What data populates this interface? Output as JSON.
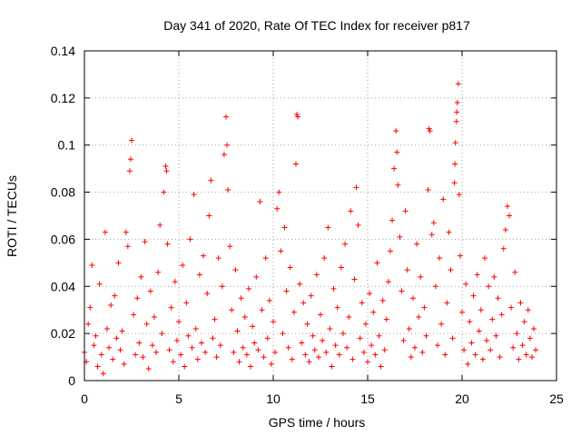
{
  "chart_data": {
    "type": "scatter",
    "title": "Day 341 of 2020, Rate Of TEC Index for receiver p817",
    "xlabel": "GPS time / hours",
    "ylabel": "ROTI / TECUs",
    "xlim": [
      0,
      25
    ],
    "ylim": [
      0,
      0.14
    ],
    "xticks": [
      0,
      5,
      10,
      15,
      20,
      25
    ],
    "yticks": [
      0,
      0.02,
      0.04,
      0.06,
      0.08,
      0.1,
      0.12,
      0.14
    ],
    "xtick_labels": [
      "0",
      "5",
      "10",
      "15",
      "20",
      "25"
    ],
    "ytick_labels": [
      "0",
      "0.02",
      "0.04",
      "0.06",
      "0.08",
      "0.1",
      "0.12",
      "0.14"
    ],
    "grid": true,
    "marker": "+",
    "color": "#ff0000",
    "series": [
      {
        "name": "p817",
        "points": [
          [
            0.0,
            0.012
          ],
          [
            0.1,
            0.008
          ],
          [
            0.2,
            0.024
          ],
          [
            0.3,
            0.031
          ],
          [
            0.4,
            0.049
          ],
          [
            0.5,
            0.015
          ],
          [
            0.6,
            0.019
          ],
          [
            0.7,
            0.006
          ],
          [
            0.8,
            0.041
          ],
          [
            0.9,
            0.011
          ],
          [
            1.0,
            0.003
          ],
          [
            1.1,
            0.063
          ],
          [
            1.2,
            0.022
          ],
          [
            1.3,
            0.014
          ],
          [
            1.4,
            0.032
          ],
          [
            1.5,
            0.009
          ],
          [
            1.6,
            0.036
          ],
          [
            1.7,
            0.018
          ],
          [
            1.8,
            0.05
          ],
          [
            1.9,
            0.013
          ],
          [
            2.0,
            0.021
          ],
          [
            2.1,
            0.007
          ],
          [
            2.2,
            0.063
          ],
          [
            2.3,
            0.057
          ],
          [
            2.4,
            0.089
          ],
          [
            2.45,
            0.094
          ],
          [
            2.5,
            0.102
          ],
          [
            2.6,
            0.028
          ],
          [
            2.7,
            0.011
          ],
          [
            2.8,
            0.035
          ],
          [
            2.9,
            0.016
          ],
          [
            3.0,
            0.044
          ],
          [
            3.1,
            0.01
          ],
          [
            3.2,
            0.059
          ],
          [
            3.3,
            0.024
          ],
          [
            3.4,
            0.005
          ],
          [
            3.5,
            0.038
          ],
          [
            3.6,
            0.015
          ],
          [
            3.7,
            0.027
          ],
          [
            3.8,
            0.012
          ],
          [
            3.9,
            0.046
          ],
          [
            4.0,
            0.066
          ],
          [
            4.1,
            0.02
          ],
          [
            4.2,
            0.08
          ],
          [
            4.3,
            0.091
          ],
          [
            4.35,
            0.089
          ],
          [
            4.4,
            0.058
          ],
          [
            4.5,
            0.013
          ],
          [
            4.6,
            0.031
          ],
          [
            4.7,
            0.008
          ],
          [
            4.8,
            0.042
          ],
          [
            4.9,
            0.017
          ],
          [
            5.0,
            0.025
          ],
          [
            5.1,
            0.011
          ],
          [
            5.2,
            0.049
          ],
          [
            5.3,
            0.006
          ],
          [
            5.4,
            0.033
          ],
          [
            5.5,
            0.019
          ],
          [
            5.6,
            0.06
          ],
          [
            5.7,
            0.014
          ],
          [
            5.8,
            0.079
          ],
          [
            5.9,
            0.022
          ],
          [
            6.0,
            0.009
          ],
          [
            6.1,
            0.045
          ],
          [
            6.2,
            0.016
          ],
          [
            6.3,
            0.053
          ],
          [
            6.4,
            0.012
          ],
          [
            6.5,
            0.037
          ],
          [
            6.6,
            0.07
          ],
          [
            6.7,
            0.085
          ],
          [
            6.8,
            0.018
          ],
          [
            6.9,
            0.026
          ],
          [
            7.0,
            0.01
          ],
          [
            7.1,
            0.052
          ],
          [
            7.2,
            0.015
          ],
          [
            7.3,
            0.04
          ],
          [
            7.4,
            0.096
          ],
          [
            7.5,
            0.112
          ],
          [
            7.55,
            0.1
          ],
          [
            7.6,
            0.081
          ],
          [
            7.7,
            0.057
          ],
          [
            7.8,
            0.03
          ],
          [
            7.9,
            0.012
          ],
          [
            8.0,
            0.047
          ],
          [
            8.1,
            0.021
          ],
          [
            8.2,
            0.008
          ],
          [
            8.3,
            0.035
          ],
          [
            8.4,
            0.014
          ],
          [
            8.5,
            0.027
          ],
          [
            8.6,
            0.011
          ],
          [
            8.7,
            0.039
          ],
          [
            8.8,
            0.006
          ],
          [
            8.9,
            0.023
          ],
          [
            9.0,
            0.016
          ],
          [
            9.1,
            0.044
          ],
          [
            9.2,
            0.013
          ],
          [
            9.3,
            0.076
          ],
          [
            9.4,
            0.03
          ],
          [
            9.5,
            0.01
          ],
          [
            9.6,
            0.052
          ],
          [
            9.7,
            0.018
          ],
          [
            9.8,
            0.034
          ],
          [
            9.9,
            0.007
          ],
          [
            10.0,
            0.025
          ],
          [
            10.1,
            0.012
          ],
          [
            10.2,
            0.073
          ],
          [
            10.3,
            0.08
          ],
          [
            10.4,
            0.055
          ],
          [
            10.5,
            0.02
          ],
          [
            10.6,
            0.065
          ],
          [
            10.7,
            0.038
          ],
          [
            10.8,
            0.014
          ],
          [
            10.9,
            0.048
          ],
          [
            11.0,
            0.009
          ],
          [
            11.1,
            0.029
          ],
          [
            11.2,
            0.092
          ],
          [
            11.25,
            0.113
          ],
          [
            11.3,
            0.112
          ],
          [
            11.4,
            0.041
          ],
          [
            11.5,
            0.016
          ],
          [
            11.6,
            0.033
          ],
          [
            11.7,
            0.011
          ],
          [
            11.8,
            0.024
          ],
          [
            11.9,
            0.008
          ],
          [
            12.0,
            0.036
          ],
          [
            12.1,
            0.019
          ],
          [
            12.2,
            0.013
          ],
          [
            12.3,
            0.045
          ],
          [
            12.4,
            0.01
          ],
          [
            12.5,
            0.028
          ],
          [
            12.6,
            0.017
          ],
          [
            12.7,
            0.052
          ],
          [
            12.8,
            0.012
          ],
          [
            12.9,
            0.065
          ],
          [
            13.0,
            0.022
          ],
          [
            13.1,
            0.006
          ],
          [
            13.2,
            0.039
          ],
          [
            13.3,
            0.015
          ],
          [
            13.4,
            0.031
          ],
          [
            13.5,
            0.011
          ],
          [
            13.6,
            0.048
          ],
          [
            13.7,
            0.02
          ],
          [
            13.8,
            0.058
          ],
          [
            13.9,
            0.014
          ],
          [
            14.0,
            0.027
          ],
          [
            14.1,
            0.072
          ],
          [
            14.2,
            0.009
          ],
          [
            14.3,
            0.043
          ],
          [
            14.4,
            0.082
          ],
          [
            14.5,
            0.066
          ],
          [
            14.6,
            0.018
          ],
          [
            14.7,
            0.033
          ],
          [
            14.8,
            0.012
          ],
          [
            14.9,
            0.024
          ],
          [
            15.0,
            0.008
          ],
          [
            15.1,
            0.037
          ],
          [
            15.2,
            0.015
          ],
          [
            15.3,
            0.029
          ],
          [
            15.4,
            0.011
          ],
          [
            15.5,
            0.05
          ],
          [
            15.6,
            0.019
          ],
          [
            15.7,
            0.006
          ],
          [
            15.8,
            0.034
          ],
          [
            15.9,
            0.013
          ],
          [
            16.0,
            0.026
          ],
          [
            16.1,
            0.042
          ],
          [
            16.2,
            0.055
          ],
          [
            16.3,
            0.068
          ],
          [
            16.4,
            0.09
          ],
          [
            16.5,
            0.106
          ],
          [
            16.55,
            0.097
          ],
          [
            16.6,
            0.083
          ],
          [
            16.7,
            0.061
          ],
          [
            16.8,
            0.038
          ],
          [
            16.9,
            0.017
          ],
          [
            17.0,
            0.072
          ],
          [
            17.1,
            0.047
          ],
          [
            17.2,
            0.022
          ],
          [
            17.3,
            0.01
          ],
          [
            17.4,
            0.035
          ],
          [
            17.5,
            0.014
          ],
          [
            17.6,
            0.058
          ],
          [
            17.7,
            0.027
          ],
          [
            17.8,
            0.044
          ],
          [
            17.9,
            0.012
          ],
          [
            18.0,
            0.031
          ],
          [
            18.1,
            0.019
          ],
          [
            18.2,
            0.081
          ],
          [
            18.25,
            0.107
          ],
          [
            18.3,
            0.106
          ],
          [
            18.4,
            0.062
          ],
          [
            18.5,
            0.067
          ],
          [
            18.6,
            0.04
          ],
          [
            18.7,
            0.015
          ],
          [
            18.8,
            0.052
          ],
          [
            18.9,
            0.024
          ],
          [
            19.0,
            0.077
          ],
          [
            19.1,
            0.011
          ],
          [
            19.2,
            0.033
          ],
          [
            19.3,
            0.063
          ],
          [
            19.4,
            0.047
          ],
          [
            19.5,
            0.018
          ],
          [
            19.6,
            0.084
          ],
          [
            19.62,
            0.092
          ],
          [
            19.65,
            0.101
          ],
          [
            19.7,
            0.11
          ],
          [
            19.72,
            0.114
          ],
          [
            19.75,
            0.118
          ],
          [
            19.8,
            0.126
          ],
          [
            19.85,
            0.079
          ],
          [
            19.9,
            0.053
          ],
          [
            20.0,
            0.029
          ],
          [
            20.1,
            0.013
          ],
          [
            20.2,
            0.041
          ],
          [
            20.3,
            0.007
          ],
          [
            20.4,
            0.025
          ],
          [
            20.5,
            0.016
          ],
          [
            20.6,
            0.036
          ],
          [
            20.7,
            0.011
          ],
          [
            20.8,
            0.045
          ],
          [
            20.9,
            0.021
          ],
          [
            21.0,
            0.03
          ],
          [
            21.1,
            0.009
          ],
          [
            21.2,
            0.052
          ],
          [
            21.3,
            0.017
          ],
          [
            21.4,
            0.04
          ],
          [
            21.5,
            0.013
          ],
          [
            21.6,
            0.026
          ],
          [
            21.7,
            0.044
          ],
          [
            21.8,
            0.019
          ],
          [
            21.9,
            0.035
          ],
          [
            22.0,
            0.01
          ],
          [
            22.1,
            0.028
          ],
          [
            22.2,
            0.056
          ],
          [
            22.3,
            0.064
          ],
          [
            22.4,
            0.074
          ],
          [
            22.5,
            0.07
          ],
          [
            22.6,
            0.031
          ],
          [
            22.7,
            0.014
          ],
          [
            22.8,
            0.046
          ],
          [
            22.9,
            0.02
          ],
          [
            23.0,
            0.009
          ],
          [
            23.1,
            0.033
          ],
          [
            23.2,
            0.015
          ],
          [
            23.3,
            0.025
          ],
          [
            23.4,
            0.011
          ],
          [
            23.5,
            0.03
          ],
          [
            23.6,
            0.018
          ],
          [
            23.7,
            0.01
          ],
          [
            23.8,
            0.022
          ],
          [
            23.9,
            0.013
          ]
        ]
      }
    ]
  }
}
